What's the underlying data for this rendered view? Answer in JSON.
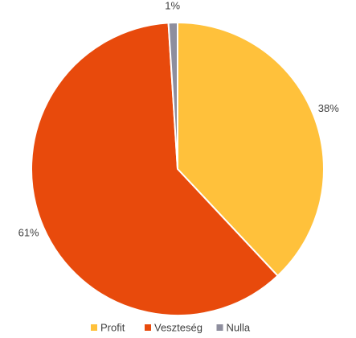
{
  "chart_data": {
    "type": "pie",
    "categories": [
      "Profit",
      "Veszteség",
      "Nulla"
    ],
    "values": [
      38,
      61,
      1
    ],
    "value_labels": [
      "38%",
      "61%",
      "1%"
    ],
    "colors": [
      "#FFC13B",
      "#E84A0C",
      "#8E8E9E"
    ],
    "legend": "bottom"
  }
}
